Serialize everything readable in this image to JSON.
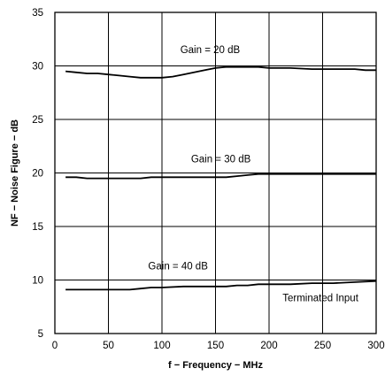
{
  "chart_data": {
    "type": "line",
    "xlabel": "f − Frequency − MHz",
    "ylabel": "NF − Noise Figure − dB",
    "xlim": [
      0,
      300
    ],
    "ylim": [
      5,
      35
    ],
    "xticks": [
      0,
      50,
      100,
      150,
      200,
      250,
      300
    ],
    "yticks": [
      5,
      10,
      15,
      20,
      25,
      30,
      35
    ],
    "grid": true,
    "series": [
      {
        "name": "Gain = 20 dB",
        "x": [
          10,
          20,
          30,
          40,
          50,
          60,
          70,
          80,
          90,
          100,
          110,
          120,
          130,
          140,
          150,
          160,
          170,
          180,
          190,
          200,
          220,
          240,
          260,
          280,
          290,
          300
        ],
        "y": [
          29.5,
          29.4,
          29.3,
          29.3,
          29.2,
          29.1,
          29.0,
          28.9,
          28.9,
          28.9,
          29.0,
          29.2,
          29.4,
          29.6,
          29.8,
          29.9,
          29.9,
          29.9,
          29.9,
          29.8,
          29.8,
          29.7,
          29.7,
          29.7,
          29.6,
          29.6
        ]
      },
      {
        "name": "Gain = 30 dB",
        "x": [
          10,
          20,
          30,
          50,
          70,
          80,
          90,
          100,
          120,
          140,
          160,
          170,
          180,
          190,
          200,
          220,
          250,
          280,
          300
        ],
        "y": [
          19.6,
          19.6,
          19.5,
          19.5,
          19.5,
          19.5,
          19.6,
          19.6,
          19.6,
          19.6,
          19.6,
          19.7,
          19.8,
          19.9,
          19.9,
          19.9,
          19.9,
          19.9,
          19.9
        ]
      },
      {
        "name": "Gain = 40 dB",
        "x": [
          10,
          20,
          40,
          60,
          70,
          80,
          90,
          100,
          120,
          140,
          160,
          170,
          180,
          190,
          200,
          220,
          240,
          260,
          280,
          300
        ],
        "y": [
          9.1,
          9.1,
          9.1,
          9.1,
          9.1,
          9.2,
          9.3,
          9.3,
          9.4,
          9.4,
          9.4,
          9.5,
          9.5,
          9.6,
          9.6,
          9.6,
          9.7,
          9.7,
          9.8,
          9.9
        ]
      }
    ],
    "annotations": [
      {
        "text": "Gain = 20 dB",
        "x": 145,
        "y": 31.2
      },
      {
        "text": "Gain = 30 dB",
        "x": 155,
        "y": 21.0
      },
      {
        "text": "Gain = 40 dB",
        "x": 115,
        "y": 11.0
      },
      {
        "text": "Terminated Input",
        "x": 248,
        "y": 8.0
      }
    ]
  }
}
